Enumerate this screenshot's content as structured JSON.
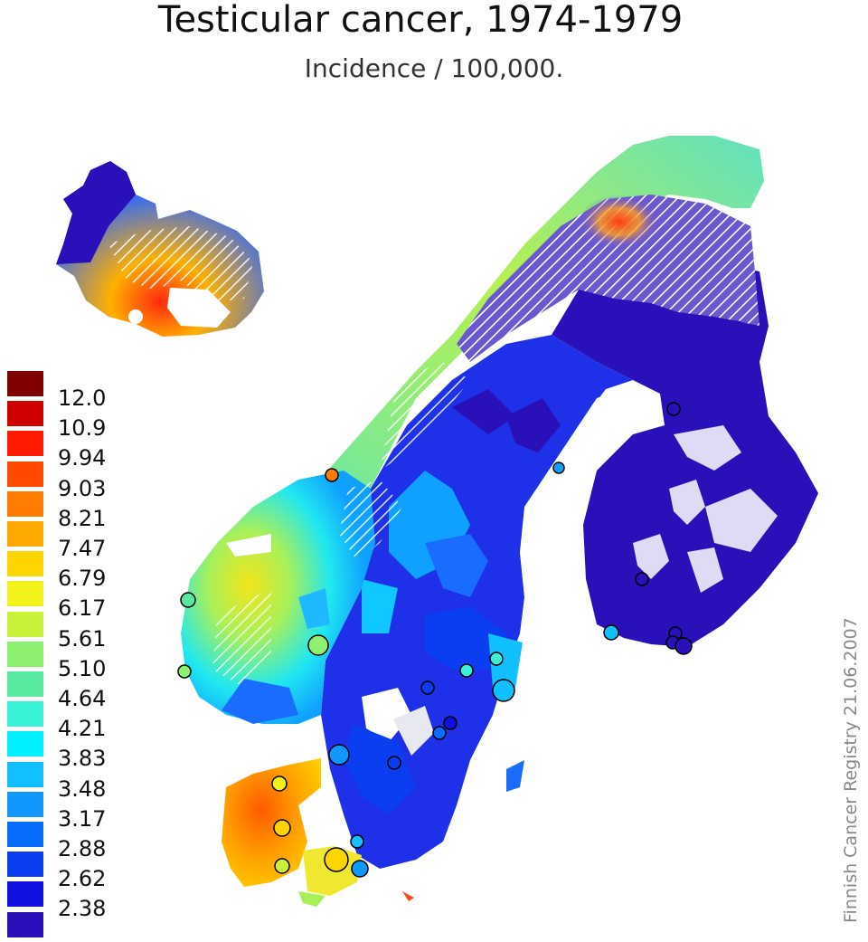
{
  "map": {
    "title": "Testicular cancer, 1974-1979",
    "subtitle": "Incidence / 100,000.",
    "legend": [
      {
        "label": "12.0",
        "color": "#800000"
      },
      {
        "label": "10.9",
        "color": "#d00000"
      },
      {
        "label": "9.94",
        "color": "#ff1a00"
      },
      {
        "label": "9.03",
        "color": "#ff4a00"
      },
      {
        "label": "8.21",
        "color": "#ff7c00"
      },
      {
        "label": "7.47",
        "color": "#ffa800"
      },
      {
        "label": "6.79",
        "color": "#ffd500"
      },
      {
        "label": "6.17",
        "color": "#f2f21a"
      },
      {
        "label": "5.61",
        "color": "#c8f238"
      },
      {
        "label": "5.10",
        "color": "#8ef070"
      },
      {
        "label": "4.64",
        "color": "#58e8a0"
      },
      {
        "label": "4.21",
        "color": "#38f2d8"
      },
      {
        "label": "3.83",
        "color": "#00f0ff"
      },
      {
        "label": "3.48",
        "color": "#10c0ff"
      },
      {
        "label": "3.17",
        "color": "#1098ff"
      },
      {
        "label": "2.88",
        "color": "#0a6cff"
      },
      {
        "label": "2.62",
        "color": "#0a3ef0"
      },
      {
        "label": "2.38",
        "color": "#1010e0"
      },
      {
        "label": "",
        "color": "#2a10b8"
      }
    ],
    "credit": "Finnish Cancer Registry 21.06.2007"
  }
}
